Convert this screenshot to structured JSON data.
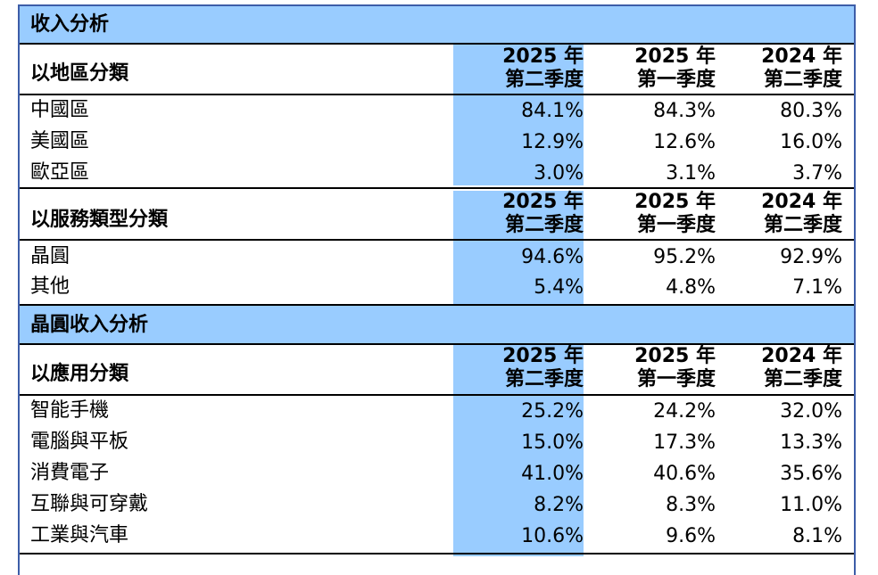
{
  "section1": {
    "title": "收入分析"
  },
  "region": {
    "category_label": "以地區分類",
    "headers": [
      {
        "year": "2025 年",
        "quarter": "第二季度"
      },
      {
        "year": "2025 年",
        "quarter": "第一季度"
      },
      {
        "year": "2024 年",
        "quarter": "第二季度"
      }
    ],
    "rows": [
      {
        "label": "中國區",
        "values": [
          "84.1%",
          "84.3%",
          "80.3%"
        ]
      },
      {
        "label": "美國區",
        "values": [
          "12.9%",
          "12.6%",
          "16.0%"
        ]
      },
      {
        "label": "歐亞區",
        "values": [
          "3.0%",
          "3.1%",
          "3.7%"
        ]
      }
    ]
  },
  "service": {
    "category_label": "以服務類型分類",
    "headers": [
      {
        "year": "2025 年",
        "quarter": "第二季度"
      },
      {
        "year": "2025 年",
        "quarter": "第一季度"
      },
      {
        "year": "2024 年",
        "quarter": "第二季度"
      }
    ],
    "rows": [
      {
        "label": "晶圓",
        "values": [
          "94.6%",
          "95.2%",
          "92.9%"
        ]
      },
      {
        "label": "其他",
        "values": [
          "5.4%",
          "4.8%",
          "7.1%"
        ]
      }
    ]
  },
  "section2": {
    "title": "晶圓收入分析"
  },
  "application": {
    "category_label": "以應用分類",
    "headers": [
      {
        "year": "2025 年",
        "quarter": "第二季度"
      },
      {
        "year": "2025 年",
        "quarter": "第一季度"
      },
      {
        "year": "2024 年",
        "quarter": "第二季度"
      }
    ],
    "rows": [
      {
        "label": "智能手機",
        "values": [
          "25.2%",
          "24.2%",
          "32.0%"
        ]
      },
      {
        "label": "電腦與平板",
        "values": [
          "15.0%",
          "17.3%",
          "13.3%"
        ]
      },
      {
        "label": "消費電子",
        "values": [
          "41.0%",
          "40.6%",
          "35.6%"
        ]
      },
      {
        "label": "互聯與可穿戴",
        "values": [
          "8.2%",
          "8.3%",
          "11.0%"
        ]
      },
      {
        "label": "工業與汽車",
        "values": [
          "10.6%",
          "9.6%",
          "8.1%"
        ]
      }
    ]
  },
  "colors": {
    "highlight": "#99ccff",
    "border": "#3d5da8"
  }
}
